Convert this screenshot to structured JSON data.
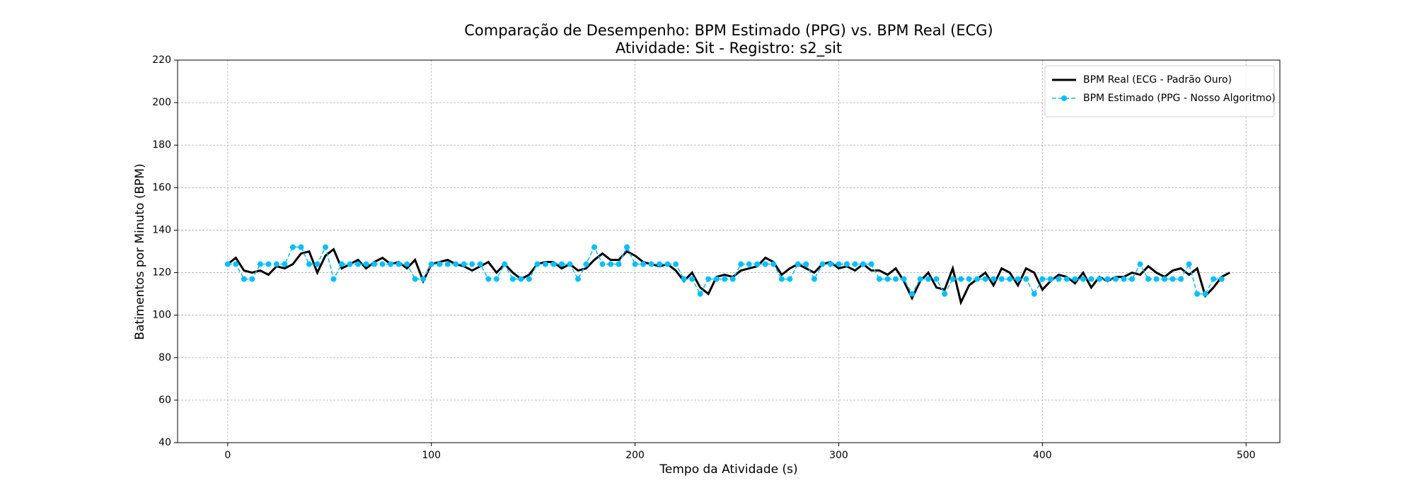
{
  "chart_data": {
    "type": "line",
    "title": "Comparação de Desempenho: BPM Estimado (PPG) vs. BPM Real (ECG)",
    "subtitle": "Atividade: Sit - Registro: s2_sit",
    "x_label": "Tempo da Atividade (s)",
    "y_label": "Batimentos por Minuto (BPM)",
    "xlim": [
      -24.6,
      516.6
    ],
    "ylim": [
      40,
      220
    ],
    "xticks": [
      0,
      100,
      200,
      300,
      400,
      500
    ],
    "yticks": [
      40,
      60,
      80,
      100,
      120,
      140,
      160,
      180,
      200,
      220
    ],
    "grid": true,
    "legend": "upper right",
    "x": [
      0,
      4,
      8,
      12,
      16,
      20,
      24,
      28,
      32,
      36,
      40,
      44,
      48,
      52,
      56,
      60,
      64,
      68,
      72,
      76,
      80,
      84,
      88,
      92,
      96,
      100,
      104,
      108,
      112,
      116,
      120,
      124,
      128,
      132,
      136,
      140,
      144,
      148,
      152,
      156,
      160,
      164,
      168,
      172,
      176,
      180,
      184,
      188,
      192,
      196,
      200,
      204,
      208,
      212,
      216,
      220,
      224,
      228,
      232,
      236,
      240,
      244,
      248,
      252,
      256,
      260,
      264,
      268,
      272,
      276,
      280,
      284,
      288,
      292,
      296,
      300,
      304,
      308,
      312,
      316,
      320,
      324,
      328,
      332,
      336,
      340,
      344,
      348,
      352,
      356,
      360,
      364,
      368,
      372,
      376,
      380,
      384,
      388,
      392,
      396,
      400,
      404,
      408,
      412,
      416,
      420,
      424,
      428,
      432,
      436,
      440,
      444,
      448,
      452,
      456,
      460,
      464,
      468,
      472,
      476,
      480,
      484,
      488,
      492
    ],
    "series": [
      {
        "name": "BPM Real (ECG - Padrão Ouro)",
        "color": "#000000",
        "line_style": "solid",
        "marker": "none",
        "values": [
          124,
          127,
          121,
          120,
          121,
          119,
          123,
          122,
          124,
          129,
          130,
          120,
          128,
          131,
          122,
          124,
          126,
          122,
          125,
          127,
          124,
          125,
          122,
          126,
          116,
          124,
          125,
          126,
          124,
          123,
          121,
          123,
          125,
          120,
          124,
          120,
          117,
          119,
          124,
          125,
          125,
          122,
          124,
          121,
          122,
          126,
          129,
          126,
          126,
          130,
          128,
          125,
          124,
          123,
          124,
          121,
          116,
          120,
          113,
          110,
          118,
          119,
          118,
          121,
          122,
          123,
          127,
          125,
          119,
          122,
          124,
          122,
          120,
          124,
          125,
          122,
          123,
          121,
          124,
          121,
          121,
          119,
          122,
          116,
          108,
          116,
          120,
          113,
          112,
          122,
          106,
          114,
          117,
          120,
          114,
          122,
          120,
          114,
          122,
          120,
          112,
          116,
          119,
          118,
          115,
          120,
          113,
          118,
          116,
          118,
          118,
          120,
          119,
          123,
          120,
          118,
          121,
          122,
          119,
          122,
          109,
          113,
          118,
          120
        ]
      },
      {
        "name": "BPM Estimado (PPG - Nosso Algoritmo)",
        "color": "#00bfff",
        "line_style": "dashed",
        "marker": "circle",
        "values": [
          124,
          124,
          117,
          117,
          124,
          124,
          124,
          124,
          132,
          132,
          124,
          124,
          132,
          117,
          124,
          124,
          124,
          124,
          124,
          124,
          124,
          124,
          124,
          117,
          117,
          124,
          124,
          124,
          124,
          124,
          124,
          124,
          117,
          117,
          124,
          117,
          117,
          117,
          124,
          124,
          124,
          124,
          124,
          117,
          124,
          132,
          124,
          124,
          124,
          132,
          124,
          124,
          124,
          124,
          124,
          124,
          117,
          117,
          110,
          117,
          117,
          117,
          117,
          124,
          124,
          124,
          124,
          124,
          117,
          117,
          124,
          124,
          117,
          124,
          124,
          124,
          124,
          124,
          124,
          124,
          117,
          117,
          117,
          117,
          110,
          117,
          117,
          117,
          110,
          117,
          117,
          117,
          117,
          117,
          117,
          117,
          117,
          117,
          117,
          110,
          117,
          117,
          117,
          117,
          117,
          117,
          117,
          117,
          117,
          117,
          117,
          117,
          124,
          117,
          117,
          117,
          117,
          117,
          124,
          110,
          110,
          117,
          117,
          null
        ]
      }
    ]
  }
}
